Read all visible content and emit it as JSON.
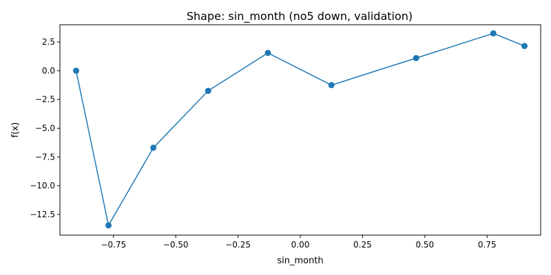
{
  "chart_data": {
    "type": "line",
    "title": "Shape: sin_month (no5 down, validation)",
    "xlabel": "sin_month",
    "ylabel": "f(x)",
    "xlim": [
      -0.965,
      0.965
    ],
    "ylim": [
      -14.3,
      4.0
    ],
    "grid": false,
    "color": "#1f77b4",
    "x_ticks": [
      {
        "value": -0.75,
        "label": "−0.75"
      },
      {
        "value": -0.5,
        "label": "−0.50"
      },
      {
        "value": -0.25,
        "label": "−0.25"
      },
      {
        "value": 0.0,
        "label": "0.00"
      },
      {
        "value": 0.25,
        "label": "0.25"
      },
      {
        "value": 0.5,
        "label": "0.50"
      },
      {
        "value": 0.75,
        "label": "0.75"
      }
    ],
    "y_ticks": [
      {
        "value": 2.5,
        "label": "2.5"
      },
      {
        "value": 0.0,
        "label": "0.0"
      },
      {
        "value": -2.5,
        "label": "−2.5"
      },
      {
        "value": -5.0,
        "label": "−5.0"
      },
      {
        "value": -7.5,
        "label": "−7.5"
      },
      {
        "value": -10.0,
        "label": "−10.0"
      },
      {
        "value": -12.5,
        "label": "−12.5"
      }
    ],
    "series": [
      {
        "x": [
          -0.9,
          -0.77,
          -0.59,
          -0.37,
          -0.13,
          0.125,
          0.465,
          0.775,
          0.9
        ],
        "y": [
          0.0,
          -13.45,
          -6.7,
          -1.75,
          1.55,
          -1.25,
          1.1,
          3.25,
          2.15
        ]
      }
    ]
  }
}
